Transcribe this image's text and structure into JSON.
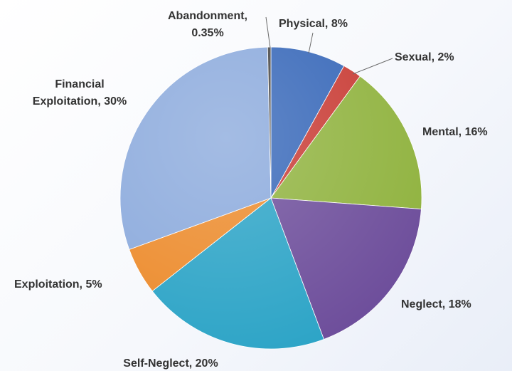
{
  "chart_data": {
    "type": "pie",
    "title": "",
    "slices": [
      {
        "label": "Physical",
        "value": 8,
        "display": "Physical, 8%",
        "color": "#3566b8"
      },
      {
        "label": "Sexual",
        "value": 2,
        "display": "Sexual, 2%",
        "color": "#c83a33"
      },
      {
        "label": "Mental",
        "value": 16,
        "display": "Mental, 16%",
        "color": "#8fb23d"
      },
      {
        "label": "Neglect",
        "value": 18,
        "display": "Neglect, 18%",
        "color": "#6c4c9a"
      },
      {
        "label": "Self-Neglect",
        "value": 20,
        "display": "Self-Neglect, 20%",
        "color": "#2aa3c6"
      },
      {
        "label": "Exploitation",
        "value": 5,
        "display": "Exploitation, 5%",
        "color": "#ec8a2a"
      },
      {
        "label": "Financial Exploitation",
        "value": 30,
        "display": [
          "Financial",
          "Exploitation, 30%"
        ],
        "color": "#8aa9dc"
      },
      {
        "label": "Abandonment",
        "value": 0.35,
        "display": [
          "Abandonment,",
          "0.35%"
        ],
        "color": "#444444"
      }
    ],
    "legend": "none",
    "label_position": "outside"
  }
}
